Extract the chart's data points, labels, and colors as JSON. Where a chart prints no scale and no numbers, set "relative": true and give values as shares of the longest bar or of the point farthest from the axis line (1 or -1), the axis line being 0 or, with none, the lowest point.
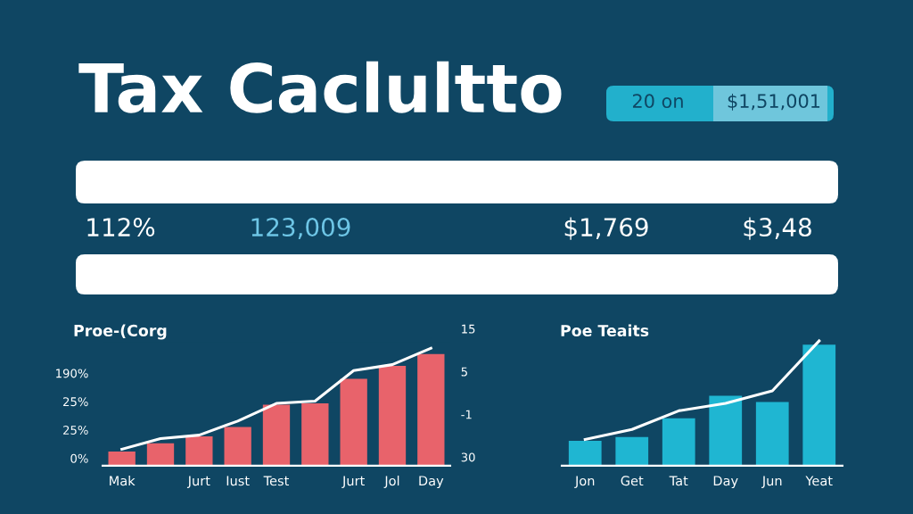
{
  "chart_data": [
    {
      "type": "other",
      "title": "Tax Caclultto",
      "annotations": [
        "20 on",
        "$1,51,001",
        "112%",
        "123,009",
        "$1,769",
        "$3,48"
      ]
    },
    {
      "type": "bar",
      "title": "Proe-(Corg",
      "relative": true,
      "categories": [
        "Mak",
        null,
        "Jurt",
        "Iust",
        "Test",
        null,
        "Jurt",
        "Jol",
        "Day"
      ],
      "series": [
        {
          "type": "bar",
          "color": "#e8636b",
          "values": [
            0.12,
            0.19,
            0.25,
            0.33,
            0.52,
            0.53,
            0.74,
            0.85,
            0.95
          ]
        },
        {
          "type": "line",
          "color": "#ffffff",
          "values": [
            0.14,
            0.23,
            0.26,
            0.38,
            0.53,
            0.55,
            0.81,
            0.86,
            1.0
          ]
        }
      ],
      "annotations": [
        "190%",
        "25%",
        "25%",
        "0%",
        "15",
        "5",
        "-1",
        "30"
      ]
    },
    {
      "type": "bar",
      "title": "Poe Teaits",
      "relative": true,
      "categories": [
        "Jon",
        "Get",
        "Tat",
        "Day",
        "Jun",
        "Yeat"
      ],
      "series": [
        {
          "type": "bar",
          "color": "#1fb6d2",
          "values": [
            0.2,
            0.23,
            0.38,
            0.56,
            0.51,
            0.97
          ]
        },
        {
          "type": "line",
          "color": "#ffffff",
          "values": [
            0.21,
            0.29,
            0.44,
            0.5,
            0.6,
            1.0
          ]
        }
      ]
    }
  ]
}
